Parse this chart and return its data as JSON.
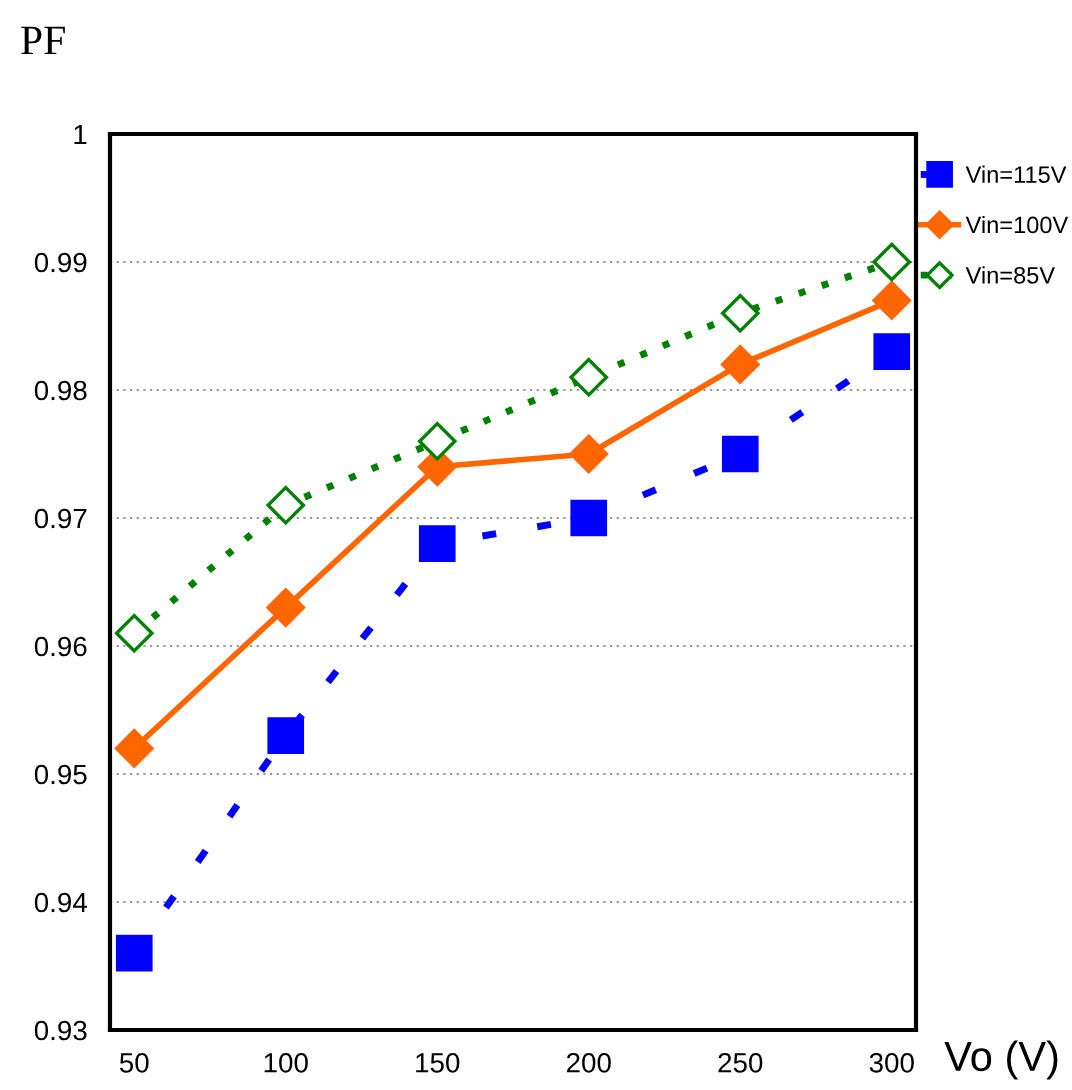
{
  "chart_data": {
    "type": "line",
    "xlabel": "Vo (V)",
    "ylabel": "PF",
    "x": [
      50,
      100,
      150,
      200,
      250,
      300
    ],
    "xlim": [
      42,
      308
    ],
    "xticks": [
      50,
      100,
      150,
      200,
      250,
      300
    ],
    "ylim": [
      0.93,
      1
    ],
    "yticks": [
      0.93,
      0.94,
      0.95,
      0.96,
      0.97,
      0.98,
      0.99,
      1
    ],
    "grid": "y",
    "legend": "right",
    "series": [
      {
        "name": "Vin=115V",
        "color": "#0000ff",
        "marker": "square",
        "line_style": "dashed",
        "values": [
          0.936,
          0.953,
          0.968,
          0.97,
          0.975,
          0.983
        ]
      },
      {
        "name": "Vin=100V",
        "color": "#ff6600",
        "marker": "diamond",
        "line_style": "solid",
        "values": [
          0.952,
          0.963,
          0.974,
          0.975,
          0.982,
          0.987
        ]
      },
      {
        "name": "Vin=85V",
        "color": "#008000",
        "marker": "diamond",
        "line_style": "dotted",
        "values": [
          0.961,
          0.971,
          0.976,
          0.981,
          0.986,
          0.99
        ]
      }
    ]
  }
}
